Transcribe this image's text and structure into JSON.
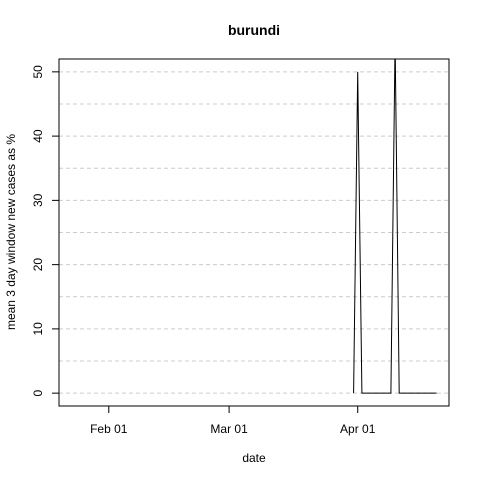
{
  "chart_data": {
    "type": "line",
    "title": "burundi",
    "xlabel": "date",
    "ylabel": "mean  3  day window new cases as %",
    "x_ticks": [
      {
        "date": "2020-02-01",
        "label": "Feb 01"
      },
      {
        "date": "2020-03-01",
        "label": "Mar 01"
      },
      {
        "date": "2020-04-01",
        "label": "Apr 01"
      }
    ],
    "y_ticks": [
      0,
      10,
      20,
      30,
      40,
      50
    ],
    "xlim": [
      "2020-01-20",
      "2020-04-23"
    ],
    "ylim": [
      -2,
      52
    ],
    "grid": {
      "horizontal": true,
      "vertical": false,
      "minor_y_step": 5
    },
    "series": [
      {
        "color": "#000000",
        "points": [
          {
            "x": "2020-03-31",
            "y": 0
          },
          {
            "x": "2020-04-01",
            "y": 50
          },
          {
            "x": "2020-04-02",
            "y": 0
          },
          {
            "x": "2020-04-09",
            "y": 0
          },
          {
            "x": "2020-04-10",
            "y": 55
          },
          {
            "x": "2020-04-11",
            "y": 0
          },
          {
            "x": "2020-04-20",
            "y": 0
          }
        ]
      }
    ]
  }
}
